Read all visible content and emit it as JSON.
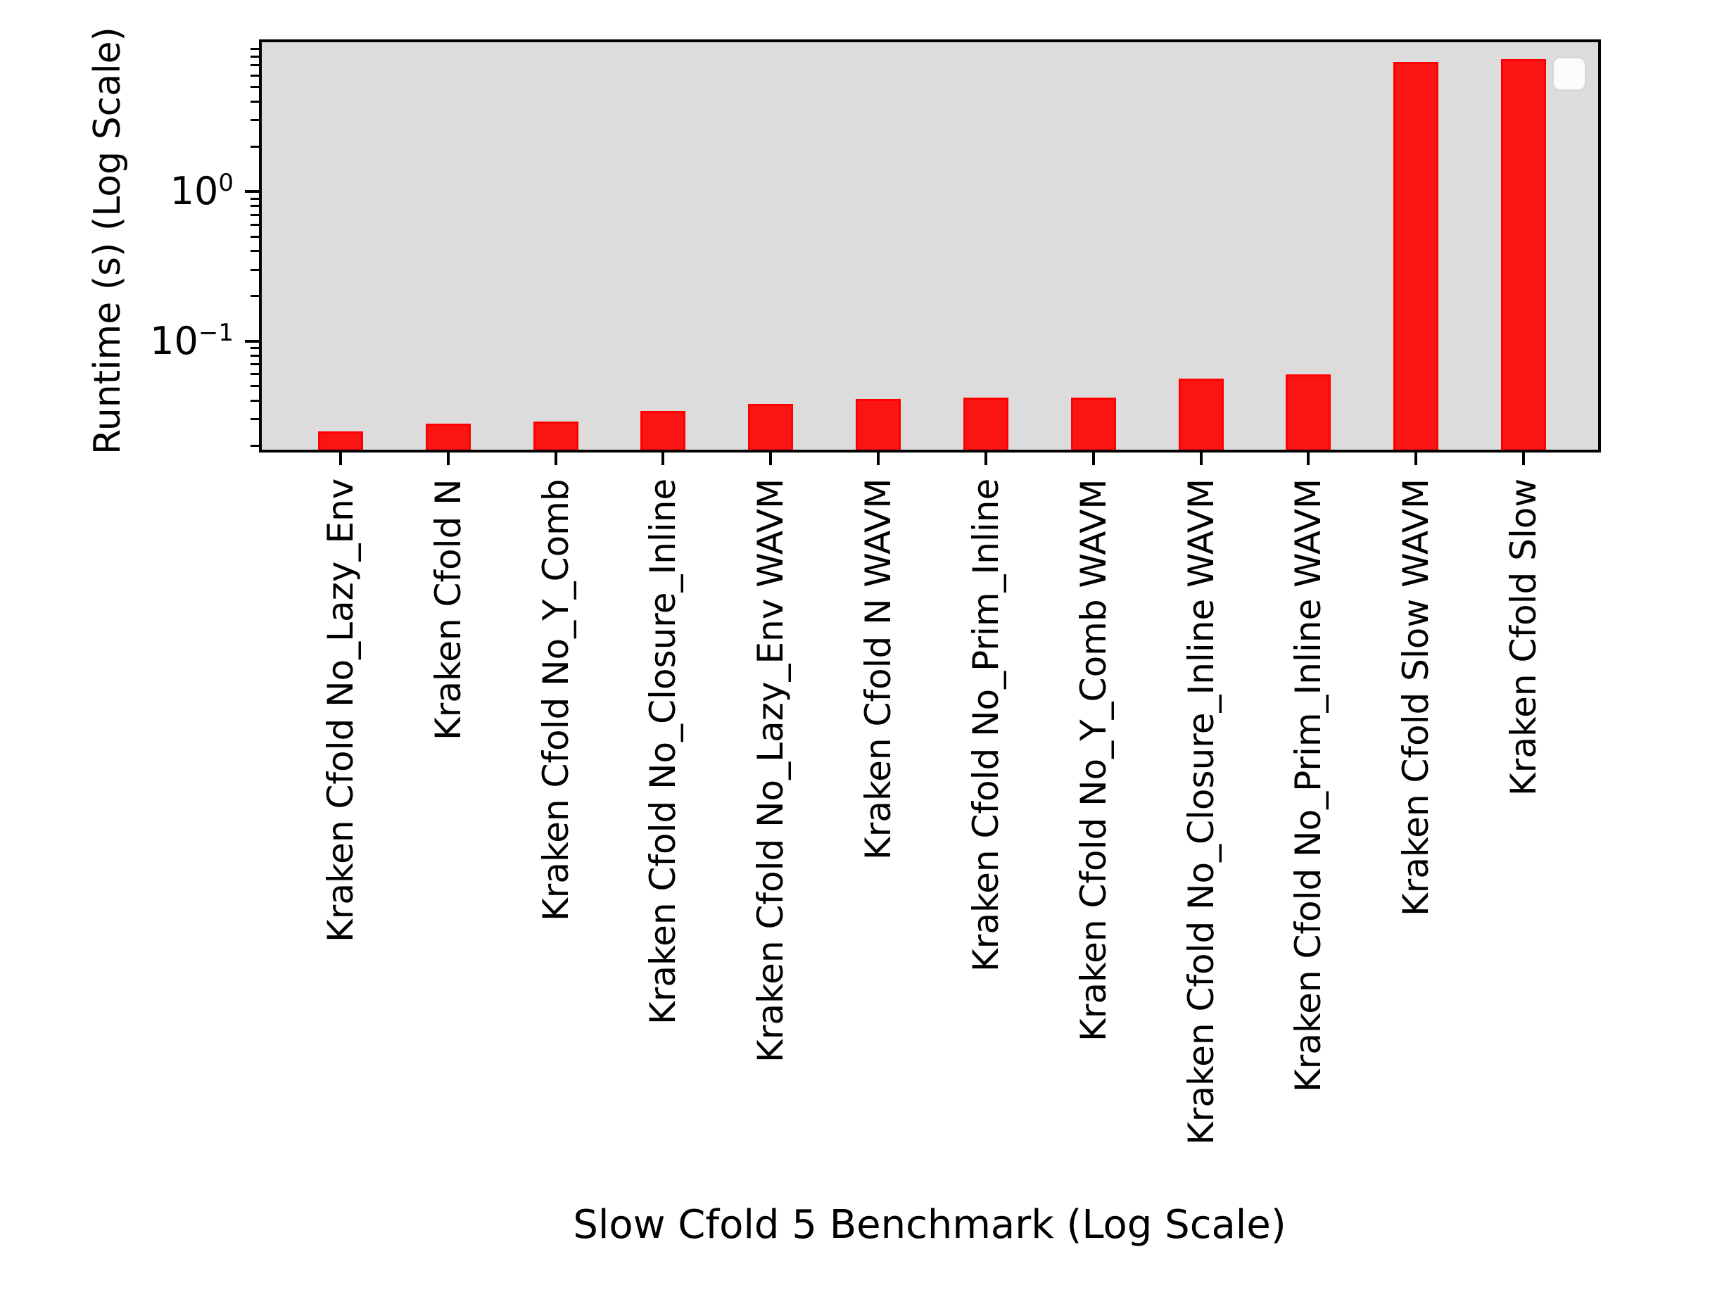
{
  "chart_data": {
    "type": "bar",
    "title": "",
    "xlabel": "Slow Cfold 5 Benchmark (Log Scale)",
    "ylabel": "Runtime (s) (Log Scale)",
    "yscale": "log",
    "ylim": [
      0.0188,
      9.99
    ],
    "grid": false,
    "categories": [
      "Kraken Cfold No_Lazy_Env",
      "Kraken Cfold N",
      "Kraken Cfold No_Y_Comb",
      "Kraken Cfold No_Closure_Inline",
      "Kraken Cfold No_Lazy_Env WAVM",
      "Kraken Cfold N WAVM",
      "Kraken Cfold No_Prim_Inline",
      "Kraken Cfold No_Y_Comb WAVM",
      "Kraken Cfold No_Closure_Inline WAVM",
      "Kraken Cfold No_Prim_Inline WAVM",
      "Kraken Cfold Slow WAVM",
      "Kraken Cfold Slow"
    ],
    "values": [
      0.025,
      0.028,
      0.029,
      0.034,
      0.038,
      0.041,
      0.042,
      0.042,
      0.056,
      0.06,
      7.4,
      7.7
    ],
    "yticks_major": [
      {
        "value": 1,
        "base": "10",
        "exp": "0"
      },
      {
        "value": 0.1,
        "base": "10",
        "exp": "−1"
      }
    ],
    "yticks_minor": [
      0.02,
      0.03,
      0.04,
      0.05,
      0.06,
      0.07,
      0.08,
      0.09,
      0.2,
      0.3,
      0.4,
      0.5,
      0.6,
      0.7,
      0.8,
      0.9,
      2,
      3,
      4,
      5,
      6,
      7,
      8,
      9
    ],
    "legend": {
      "visible": true,
      "entries": [],
      "position": "upper right"
    },
    "style": {
      "bar_fill": "#fa1414",
      "bar_edge": "#ff0000",
      "plot_bg": "#dcdcdc",
      "figure_bg": "#ffffff",
      "text_color": "#000000",
      "legend_bg": "#fbfbfb",
      "legend_border": "#d8d8d8"
    }
  }
}
